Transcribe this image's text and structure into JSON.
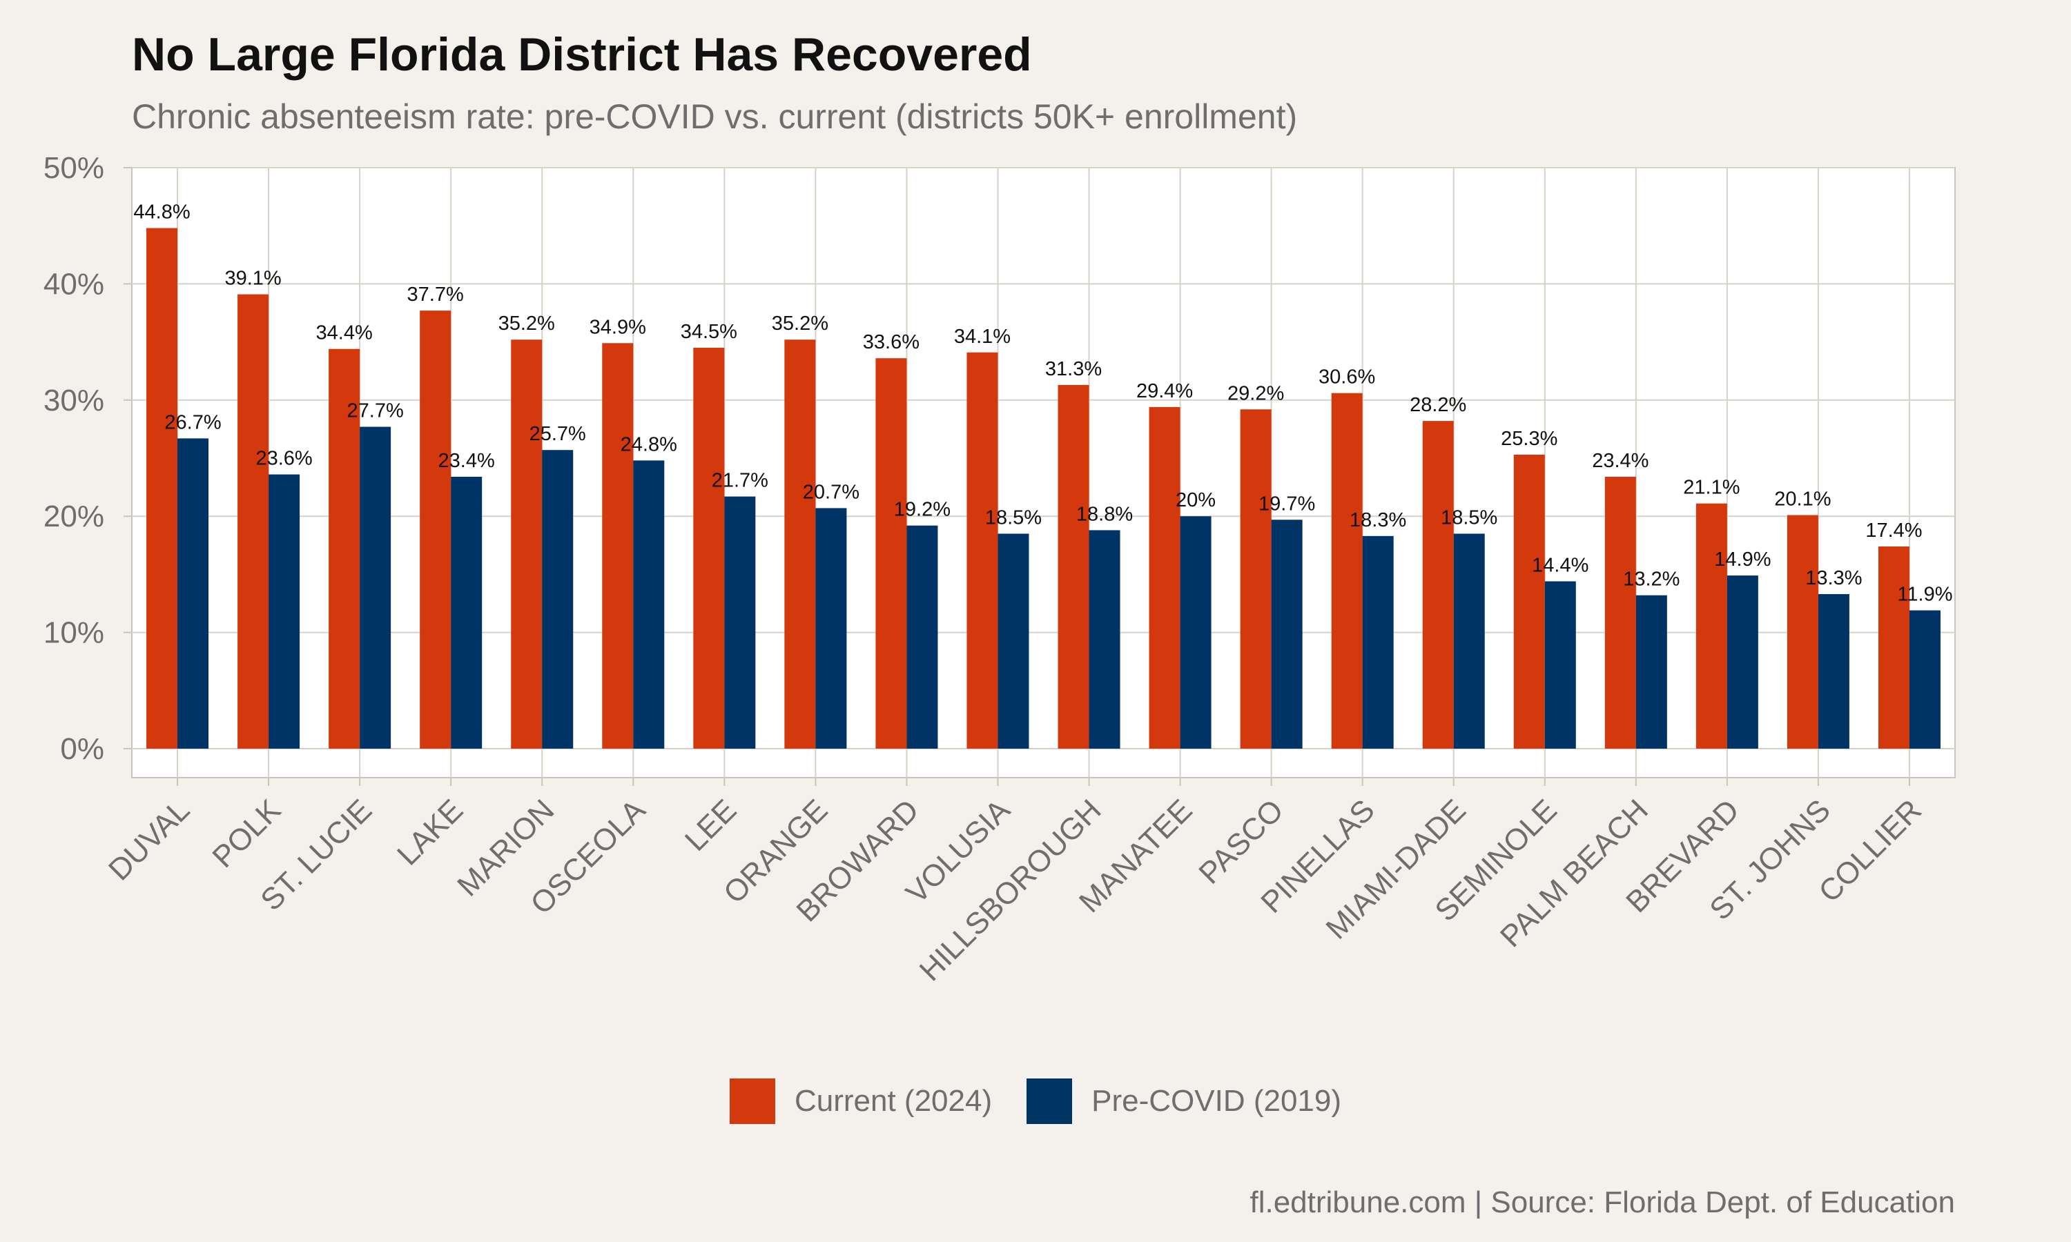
{
  "title": "No Large Florida District Has Recovered",
  "subtitle": "Chronic absenteeism rate: pre-COVID vs. current (districts 50K+ enrollment)",
  "caption": "fl.edtribune.com | Source: Florida Dept. of Education",
  "colors": {
    "current": "#d4380d",
    "pre_covid": "#003366",
    "panel": "#ffffff",
    "background": "#f4f1ec",
    "grid": "#d6d2c8"
  },
  "chart_data": {
    "type": "bar",
    "title": "No Large Florida District Has Recovered",
    "subtitle": "Chronic absenteeism rate: pre-COVID vs. current (districts 50K+ enrollment)",
    "xlabel": "",
    "ylabel": "",
    "ylim": [
      0,
      50
    ],
    "yticks": [
      "0%",
      "10%",
      "20%",
      "30%",
      "40%",
      "50%"
    ],
    "grid": true,
    "legend_position": "bottom",
    "categories": [
      "DUVAL",
      "POLK",
      "ST. LUCIE",
      "LAKE",
      "MARION",
      "OSCEOLA",
      "LEE",
      "ORANGE",
      "BROWARD",
      "VOLUSIA",
      "HILLSBOROUGH",
      "MANATEE",
      "PASCO",
      "PINELLAS",
      "MIAMI-DADE",
      "SEMINOLE",
      "PALM BEACH",
      "BREVARD",
      "ST. JOHNS",
      "COLLIER"
    ],
    "series": [
      {
        "name": "Current (2024)",
        "color": "#d4380d",
        "values": [
          44.8,
          39.1,
          34.4,
          37.7,
          35.2,
          34.9,
          34.5,
          35.2,
          33.6,
          34.1,
          31.3,
          29.4,
          29.2,
          30.6,
          28.2,
          25.3,
          23.4,
          21.1,
          20.1,
          17.4
        ],
        "labels": [
          "44.8%",
          "39.1%",
          "34.4%",
          "37.7%",
          "35.2%",
          "34.9%",
          "34.5%",
          "35.2%",
          "33.6%",
          "34.1%",
          "31.3%",
          "29.4%",
          "29.2%",
          "30.6%",
          "28.2%",
          "25.3%",
          "23.4%",
          "21.1%",
          "20.1%",
          "17.4%"
        ]
      },
      {
        "name": "Pre-COVID (2019)",
        "color": "#003366",
        "values": [
          26.7,
          23.6,
          27.7,
          23.4,
          25.7,
          24.8,
          21.7,
          20.7,
          19.2,
          18.5,
          18.8,
          20,
          19.7,
          18.3,
          18.5,
          14.4,
          13.2,
          14.9,
          13.3,
          11.9
        ],
        "labels": [
          "26.7%",
          "23.6%",
          "27.7%",
          "23.4%",
          "25.7%",
          "24.8%",
          "21.7%",
          "20.7%",
          "19.2%",
          "18.5%",
          "18.8%",
          "20%",
          "19.7%",
          "18.3%",
          "18.5%",
          "14.4%",
          "13.2%",
          "14.9%",
          "13.3%",
          "11.9%"
        ]
      }
    ]
  },
  "legend": {
    "items": [
      {
        "label": "Current (2024)",
        "color": "#d4380d"
      },
      {
        "label": "Pre-COVID (2019)",
        "color": "#003366"
      }
    ]
  }
}
